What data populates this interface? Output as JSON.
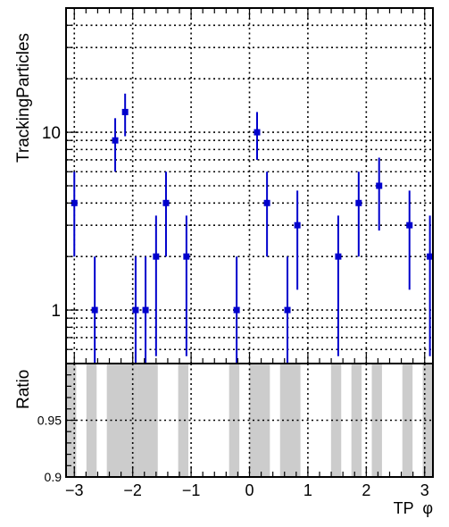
{
  "chart_data": [
    {
      "type": "scatter",
      "ylabel": "TrackingParticles",
      "yscale": "log",
      "ylim": [
        0.5,
        50
      ],
      "xlim": [
        -3.1416,
        3.1416
      ],
      "grid": true,
      "yticks": [
        {
          "value": 1,
          "label": "1"
        },
        {
          "value": 10,
          "label": "10"
        }
      ],
      "marker_color": "#0000cc",
      "points": [
        {
          "x": -3.0,
          "y": 4,
          "ylow": 2.0,
          "yhigh": 6.0
        },
        {
          "x": -2.65,
          "y": 1,
          "ylow": 0.45,
          "yhigh": 2.0
        },
        {
          "x": -2.3,
          "y": 9,
          "ylow": 6.0,
          "yhigh": 12.0
        },
        {
          "x": -2.13,
          "y": 13,
          "ylow": 9.5,
          "yhigh": 16.5
        },
        {
          "x": -1.95,
          "y": 1,
          "ylow": 0.45,
          "yhigh": 2.0
        },
        {
          "x": -1.78,
          "y": 1,
          "ylow": 0.45,
          "yhigh": 2.0
        },
        {
          "x": -1.6,
          "y": 2,
          "ylow": 0.55,
          "yhigh": 3.4
        },
        {
          "x": -1.43,
          "y": 4,
          "ylow": 2.0,
          "yhigh": 6.0
        },
        {
          "x": -1.08,
          "y": 2,
          "ylow": 0.55,
          "yhigh": 3.4
        },
        {
          "x": -0.22,
          "y": 1,
          "ylow": 0.45,
          "yhigh": 2.0
        },
        {
          "x": 0.13,
          "y": 10,
          "ylow": 7.0,
          "yhigh": 13.0
        },
        {
          "x": 0.3,
          "y": 4,
          "ylow": 2.0,
          "yhigh": 6.0
        },
        {
          "x": 0.65,
          "y": 1,
          "ylow": 0.45,
          "yhigh": 2.0
        },
        {
          "x": 0.82,
          "y": 3,
          "ylow": 1.3,
          "yhigh": 4.7
        },
        {
          "x": 1.52,
          "y": 2,
          "ylow": 0.55,
          "yhigh": 3.4
        },
        {
          "x": 1.87,
          "y": 4,
          "ylow": 2.0,
          "yhigh": 6.0
        },
        {
          "x": 2.22,
          "y": 5,
          "ylow": 2.8,
          "yhigh": 7.2
        },
        {
          "x": 2.74,
          "y": 3,
          "ylow": 1.3,
          "yhigh": 4.7
        },
        {
          "x": 3.09,
          "y": 2,
          "ylow": 0.55,
          "yhigh": 3.4
        }
      ]
    },
    {
      "type": "bar",
      "ylabel": "Ratio",
      "xlabel": "TP  φ",
      "xlim": [
        -3.1416,
        3.1416
      ],
      "ylim": [
        0.9,
        1.0
      ],
      "grid": true,
      "xticks": [
        {
          "value": -3,
          "label": "−3"
        },
        {
          "value": -2,
          "label": "−2"
        },
        {
          "value": -1,
          "label": "−1"
        },
        {
          "value": 0,
          "label": "0"
        },
        {
          "value": 1,
          "label": "1"
        },
        {
          "value": 2,
          "label": "2"
        },
        {
          "value": 3,
          "label": "3"
        }
      ],
      "yticks": [
        {
          "value": 0.9,
          "label": "0.9"
        },
        {
          "value": 0.95,
          "label": "0.95"
        }
      ],
      "band_color": "#cccccc",
      "bands": [
        {
          "x0": -3.1416,
          "x1": -2.9671,
          "y": 1
        },
        {
          "x0": -2.7925,
          "x1": -2.618,
          "y": 1
        },
        {
          "x0": -2.4435,
          "x1": -1.9199,
          "y": 1
        },
        {
          "x0": -1.9199,
          "x1": -1.5708,
          "y": 1
        },
        {
          "x0": -1.2217,
          "x1": -1.0472,
          "y": 1
        },
        {
          "x0": -0.3491,
          "x1": -0.1745,
          "y": 1
        },
        {
          "x0": 0.0,
          "x1": 0.3491,
          "y": 1
        },
        {
          "x0": 0.5236,
          "x1": 0.8727,
          "y": 1
        },
        {
          "x0": 1.3963,
          "x1": 1.5708,
          "y": 1
        },
        {
          "x0": 1.7453,
          "x1": 1.9199,
          "y": 1
        },
        {
          "x0": 2.0944,
          "x1": 2.2689,
          "y": 1
        },
        {
          "x0": 2.618,
          "x1": 2.7925,
          "y": 1
        },
        {
          "x0": 2.9671,
          "x1": 3.1416,
          "y": 1
        }
      ]
    }
  ]
}
